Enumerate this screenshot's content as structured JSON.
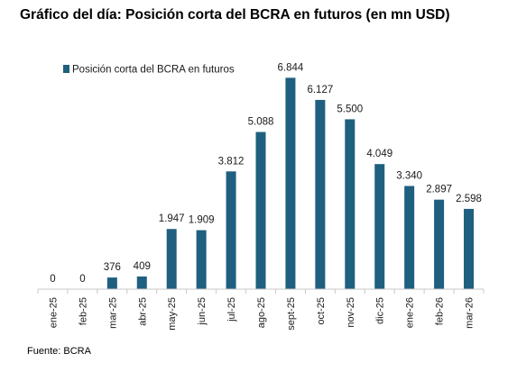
{
  "title": "Gráfico del día: Posición corta del BCRA en futuros (en mn USD)",
  "source": "Fuente: BCRA",
  "chart_data": {
    "type": "bar",
    "title": "Gráfico del día: Posición corta del BCRA en futuros (en mn USD)",
    "xlabel": "",
    "ylabel": "",
    "ylim": [
      0,
      7000
    ],
    "grid": false,
    "legend_position": "top-left",
    "categories": [
      "ene-25",
      "feb-25",
      "mar-25",
      "abr-25",
      "may-25",
      "jun-25",
      "jul-25",
      "ago-25",
      "sept-25",
      "oct-25",
      "nov-25",
      "dic-25",
      "ene-26",
      "feb-26",
      "mar-26"
    ],
    "series": [
      {
        "name": "Posición corta del BCRA en futuros",
        "color": "#1f5f7f",
        "values": [
          0,
          0,
          376,
          409,
          1947,
          1909,
          3812,
          5088,
          6844,
          6127,
          5500,
          4049,
          3340,
          2897,
          2598
        ],
        "labels": [
          "0",
          "0",
          "376",
          "409",
          "1.947",
          "1.909",
          "3.812",
          "5.088",
          "6.844",
          "6.127",
          "5.500",
          "4.049",
          "3.340",
          "2.897",
          "2.598"
        ]
      }
    ]
  }
}
